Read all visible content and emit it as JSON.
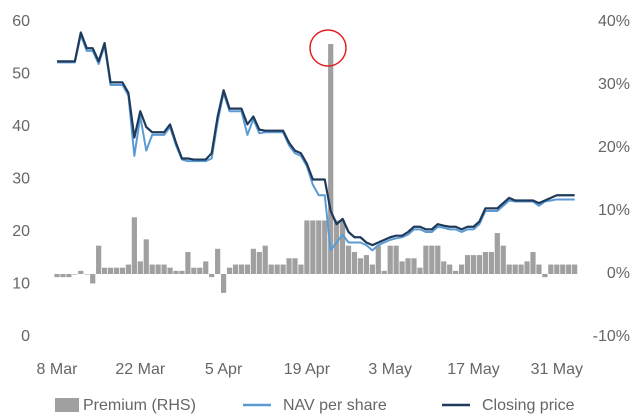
{
  "chart_data": {
    "type": "bar-line",
    "categories": [
      "8 Mar",
      null,
      null,
      null,
      null,
      null,
      null,
      null,
      null,
      null,
      null,
      null,
      null,
      null,
      "22 Mar",
      null,
      null,
      null,
      null,
      null,
      null,
      null,
      null,
      null,
      null,
      null,
      null,
      null,
      "5 Apr",
      null,
      null,
      null,
      null,
      null,
      null,
      null,
      null,
      null,
      null,
      null,
      null,
      null,
      "19 Apr",
      null,
      null,
      null,
      null,
      null,
      null,
      null,
      null,
      null,
      null,
      null,
      null,
      null,
      "3 May",
      null,
      null,
      null,
      null,
      null,
      null,
      null,
      null,
      null,
      null,
      null,
      null,
      null,
      "17 May",
      null,
      null,
      null,
      null,
      null,
      null,
      null,
      null,
      null,
      null,
      null,
      null,
      null,
      "31 May",
      null,
      null,
      null
    ],
    "series": [
      {
        "name": "Premium (RHS)",
        "type": "bar",
        "axis": "y2",
        "color": "#a0a0a0",
        "values": [
          -0.5,
          -0.5,
          -0.5,
          0,
          0.5,
          0,
          -1.5,
          4.5,
          1,
          1,
          1,
          1,
          1.5,
          9,
          2,
          5.5,
          1.5,
          1.5,
          1.5,
          1,
          0.5,
          0.5,
          3.5,
          1,
          1,
          2,
          -0.5,
          4,
          -3,
          1,
          1.5,
          1.5,
          1.5,
          4,
          3.5,
          4.5,
          1.5,
          1.5,
          1.5,
          2.5,
          2.5,
          1.5,
          8.5,
          8.5,
          8.5,
          8.5,
          36.5,
          8.5,
          8.5,
          4.5,
          3.5,
          2.5,
          3,
          1.5,
          4.5,
          0.5,
          4.5,
          4.5,
          2,
          2.5,
          2.5,
          1,
          4.5,
          4.5,
          4.5,
          2,
          1.5,
          0.5,
          1.5,
          3,
          3,
          3,
          3.5,
          3.5,
          6.5,
          4.5,
          1.5,
          1.5,
          1.5,
          2,
          3.5,
          1.5,
          -0.5,
          1.5,
          1.5,
          1.5,
          1.5,
          1.5
        ]
      },
      {
        "name": "NAV per share",
        "type": "line",
        "color": "#5b9bd5",
        "values": [
          52.3,
          52.3,
          52.3,
          52.3,
          57.5,
          54.5,
          54.5,
          52,
          55.5,
          48,
          48,
          48,
          46,
          34.5,
          42,
          35.5,
          38.5,
          38.5,
          38.5,
          40,
          36.5,
          33.8,
          33.5,
          33.5,
          33.5,
          33.5,
          34,
          41,
          46.5,
          43,
          43,
          43,
          38.5,
          41.5,
          38.8,
          39,
          39,
          39,
          39,
          36.5,
          35,
          34.5,
          32.5,
          29,
          27,
          27,
          16.5,
          18,
          19.5,
          18,
          18,
          18,
          17.5,
          16.5,
          17.5,
          18,
          18.5,
          18.8,
          19,
          19.5,
          20.5,
          20.5,
          20,
          20,
          21,
          20.8,
          20.5,
          20.5,
          20,
          20.5,
          20.5,
          21.5,
          24,
          24,
          24,
          25,
          26,
          25.8,
          25.8,
          25.8,
          25.8,
          25,
          25.8,
          26,
          26.2,
          26.2,
          26.2,
          26.2
        ]
      },
      {
        "name": "Closing price",
        "type": "line",
        "color": "#1f3a5a",
        "values": [
          52.5,
          52.5,
          52.5,
          52.5,
          58,
          55,
          55,
          52.5,
          56,
          48.5,
          48.5,
          48.5,
          46.5,
          38,
          43,
          40,
          39,
          39,
          39,
          40.5,
          37,
          34,
          34,
          33.8,
          33.8,
          33.8,
          35,
          42,
          47,
          43.5,
          43.5,
          43.5,
          40.5,
          42,
          39.5,
          39.3,
          39.3,
          39.3,
          39.3,
          37,
          35.5,
          35,
          33,
          30,
          30,
          30,
          24,
          21.5,
          22.5,
          20,
          19,
          19,
          18,
          17.5,
          18,
          18.5,
          19,
          19.3,
          19.3,
          20,
          21,
          21,
          20.5,
          20.5,
          21.5,
          21.2,
          21,
          21,
          20.5,
          21,
          21,
          22,
          24.5,
          24.5,
          24.5,
          25.5,
          26.5,
          26,
          26,
          26,
          26,
          25.5,
          26,
          26.5,
          27,
          27,
          27,
          27
        ]
      }
    ],
    "ylim": [
      0,
      60
    ],
    "yticks": [
      0,
      10,
      20,
      30,
      40,
      50,
      60
    ],
    "y2lim": [
      -10,
      40
    ],
    "y2ticks": [
      {
        "value": -10,
        "label": "-10%"
      },
      {
        "value": 0,
        "label": "0%"
      },
      {
        "value": 10,
        "label": "10%"
      },
      {
        "value": 20,
        "label": "20%"
      },
      {
        "value": 30,
        "label": "30%"
      },
      {
        "value": 40,
        "label": "40%"
      }
    ],
    "legend": "bottom"
  }
}
